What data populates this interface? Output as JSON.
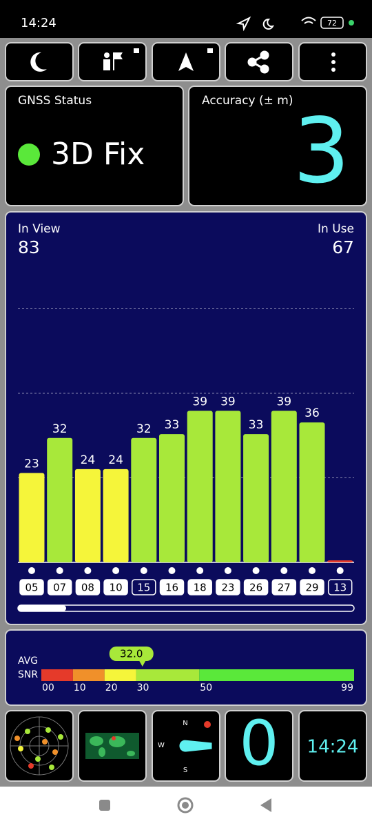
{
  "status_bar": {
    "time": "14:24",
    "battery": "72"
  },
  "gnss_status": {
    "title": "GNSS Status",
    "value": "3D Fix"
  },
  "accuracy": {
    "title": "Accuracy (± m)",
    "value": "3"
  },
  "satellites": {
    "in_view_label": "In View",
    "in_view": 83,
    "in_use_label": "In Use",
    "in_use": 67
  },
  "chart_data": {
    "type": "bar",
    "categories": [
      "05",
      "07",
      "08",
      "10",
      "15",
      "16",
      "18",
      "23",
      "26",
      "27",
      "29",
      "13"
    ],
    "values": [
      23,
      32,
      24,
      24,
      32,
      33,
      39,
      39,
      33,
      39,
      36,
      0.5
    ],
    "value_labels": [
      "23",
      "32",
      "24",
      "24",
      "32",
      "33",
      "39",
      "39",
      "33",
      "39",
      "36",
      null
    ],
    "colors": [
      "#f5f53a",
      "#a8e83a",
      "#f5f53a",
      "#f5f53a",
      "#a8e83a",
      "#a8e83a",
      "#a8e83a",
      "#a8e83a",
      "#a8e83a",
      "#a8e83a",
      "#a8e83a",
      "#e53a2a"
    ],
    "used": [
      true,
      true,
      true,
      true,
      false,
      true,
      true,
      true,
      true,
      true,
      true,
      false
    ],
    "ylim": [
      0,
      87
    ],
    "yticks": [
      21.75,
      43.5,
      65.25
    ],
    "grid": true
  },
  "snr": {
    "avg_label": "AVG",
    "snr_label": "SNR",
    "value": 32.0,
    "value_label": "32.0",
    "range": [
      0,
      99
    ],
    "ticks": [
      {
        "value": 0,
        "label": "00"
      },
      10,
      20,
      30,
      50,
      99
    ],
    "bands": [
      {
        "from": 0,
        "to": 10,
        "color": "#e53a2a"
      },
      {
        "from": 10,
        "to": 20,
        "color": "#f0902a"
      },
      {
        "from": 20,
        "to": 30,
        "color": "#f5f53a"
      },
      {
        "from": 30,
        "to": 50,
        "color": "#a8e83a"
      },
      {
        "from": 50,
        "to": 99,
        "color": "#5ae83a"
      }
    ]
  },
  "bottom": {
    "compass_n": "N",
    "compass_w": "W",
    "compass_s": "S",
    "speed": "0",
    "clock": "14:24"
  }
}
